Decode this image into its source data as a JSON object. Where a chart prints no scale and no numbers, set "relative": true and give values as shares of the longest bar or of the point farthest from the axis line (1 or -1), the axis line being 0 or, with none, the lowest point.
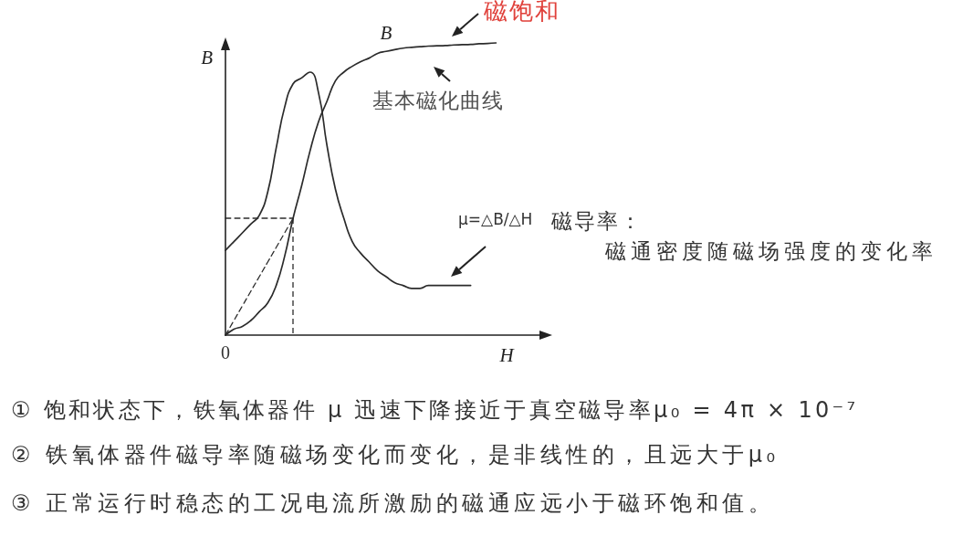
{
  "chart_data": {
    "type": "line",
    "relative": true,
    "xlabel": "H",
    "ylabel": "B",
    "marker": "none",
    "categories": [
      null,
      null,
      null,
      null,
      null,
      null,
      null,
      null,
      null,
      null,
      null,
      null,
      null,
      null,
      null,
      null,
      null,
      null,
      null,
      null,
      null,
      null,
      null,
      null,
      null,
      null,
      null,
      null,
      null,
      null,
      null,
      null,
      null,
      null,
      null,
      null,
      null,
      null,
      null
    ],
    "series": [
      {
        "name": "B",
        "color": "#2b2b2b",
        "values": [
          0,
          0.02,
          0.03,
          0.05,
          0.08,
          0.11,
          0.17,
          0.27,
          0.4,
          0.51,
          0.63,
          0.73,
          0.8,
          0.87,
          0.9,
          0.92,
          0.936,
          0.948,
          0.964,
          0.971,
          0.977,
          0.982,
          0.985,
          0.987,
          0.989,
          0.99,
          0.991,
          0.993,
          0.994,
          0.995,
          0.997,
          0.998,
          1,
          null,
          null,
          null,
          null,
          null,
          null
        ]
      },
      {
        "color": "#2b2b2b",
        "values": [
          0.29,
          0.32,
          0.35,
          0.38,
          0.41,
          0.49,
          0.64,
          0.78,
          0.86,
          0.88,
          0.9,
          0.83,
          0.65,
          0.5,
          0.4,
          0.32,
          0.28,
          0.25,
          0.22,
          0.2,
          0.18,
          0.17,
          0.16,
          0.16,
          0.17,
          0.17,
          0.17,
          0.17,
          0.17,
          0.17,
          null,
          null,
          null,
          null,
          null,
          null,
          null,
          null,
          null
        ]
      },
      {
        "type": "line",
        "line_style": "dashed",
        "color": "#2b2b2b",
        "values": [
          0,
          0.05,
          0.1,
          0.15,
          0.2,
          0.25,
          0.3,
          0.35,
          0.4,
          null,
          null,
          null,
          null,
          null,
          null,
          null,
          null,
          null,
          null,
          null,
          null,
          null,
          null,
          null,
          null,
          null,
          null,
          null,
          null,
          null,
          null,
          null,
          null,
          null,
          null,
          null,
          null,
          null,
          null
        ]
      },
      {
        "type": "line",
        "line_style": "dashed",
        "color": "#2b2b2b",
        "values": [
          0.4,
          0.4,
          0.4,
          0.4,
          0.4,
          0.4,
          0.4,
          0.4,
          0.4,
          null,
          null,
          null,
          null,
          null,
          null,
          null,
          null,
          null,
          null,
          null,
          null,
          null,
          null,
          null,
          null,
          null,
          null,
          null,
          null,
          null,
          null,
          null,
          null,
          null,
          null,
          null,
          null,
          null,
          null
        ]
      }
    ],
    "annotations": [
      "磁饱和",
      "基本磁化曲线",
      "μ=△B/△H",
      "磁导率：",
      "磁通密度随磁场强度的变化率",
      "0",
      "① 饱和状态下，铁氧体器件 μ 迅速下降接近于真空磁导率μ₀ = 4π × 10⁻⁷",
      "② 铁氧体器件磁导率随磁场变化而变化，是非线性的，且远大于μ₀",
      "③ 正常运行时稳态的工况电流所激励的磁通应远小于磁环饱和值。"
    ]
  }
}
